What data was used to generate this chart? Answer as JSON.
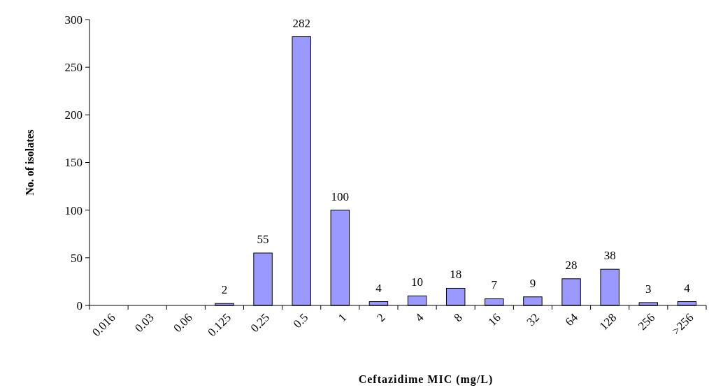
{
  "chart_data": {
    "type": "bar",
    "xlabel": "Ceftazidime MIC (mg/L)",
    "ylabel": "No. of isolates",
    "categories": [
      "0.016",
      "0.03",
      "0.06",
      "0.125",
      "0.25",
      "0.5",
      "1",
      "2",
      "4",
      "8",
      "16",
      "32",
      "64",
      "128",
      "256",
      ">256"
    ],
    "values": [
      0,
      0,
      0,
      2,
      55,
      282,
      100,
      4,
      10,
      18,
      7,
      9,
      28,
      38,
      3,
      4
    ],
    "value_labels": [
      null,
      null,
      null,
      "2",
      "55",
      "282",
      "100",
      "4",
      "10",
      "18",
      "7",
      "9",
      "28",
      "38",
      "3",
      "4"
    ],
    "color": "#9999ff",
    "ylim": [
      0,
      300
    ],
    "yticks": [
      0,
      50,
      100,
      150,
      200,
      250,
      300
    ]
  }
}
